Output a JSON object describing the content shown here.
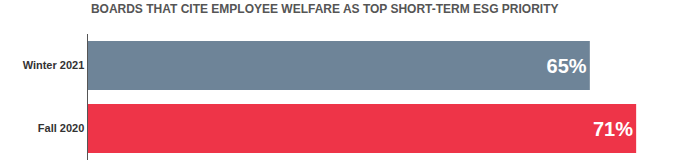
{
  "chart_data": {
    "type": "bar",
    "title": "BOARDS THAT CITE EMPLOYEE WELFARE AS TOP SHORT-TERM ESG PRIORITY",
    "orientation": "horizontal",
    "categories": [
      "Winter 2021",
      "Fall 2020"
    ],
    "values": [
      65,
      71
    ],
    "value_labels": [
      "65%",
      "71%"
    ],
    "colors": [
      "#6e8498",
      "#ee3448"
    ],
    "data_labels": true,
    "tick_labels": "y",
    "grid": false
  }
}
